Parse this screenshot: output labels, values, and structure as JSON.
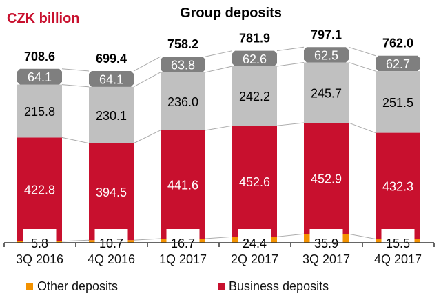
{
  "chart_data": {
    "type": "bar",
    "stacked": true,
    "title": "Group deposits",
    "unit_label": "CZK billion",
    "categories": [
      "3Q 2016",
      "4Q 2016",
      "1Q 2017",
      "2Q 2017",
      "3Q 2017",
      "4Q 2017"
    ],
    "totals": [
      "708.6",
      "699.4",
      "758.2",
      "781.9",
      "797.1",
      "762.0"
    ],
    "series": [
      {
        "name": "Other deposits",
        "color": "#f39200",
        "values": [
          5.8,
          10.7,
          16.7,
          24.4,
          35.9,
          15.5
        ]
      },
      {
        "name": "Business deposits",
        "color": "#c8102e",
        "values": [
          422.8,
          394.5,
          441.6,
          452.6,
          452.9,
          432.3
        ]
      },
      {
        "color": "#c0c0c0",
        "values": [
          215.8,
          230.1,
          236.0,
          242.2,
          245.7,
          251.5
        ]
      },
      {
        "color": "#7f7f7f",
        "values": [
          64.1,
          64.1,
          63.8,
          62.6,
          62.5,
          62.7
        ]
      }
    ],
    "legend_position": "bottom",
    "grid": false
  }
}
